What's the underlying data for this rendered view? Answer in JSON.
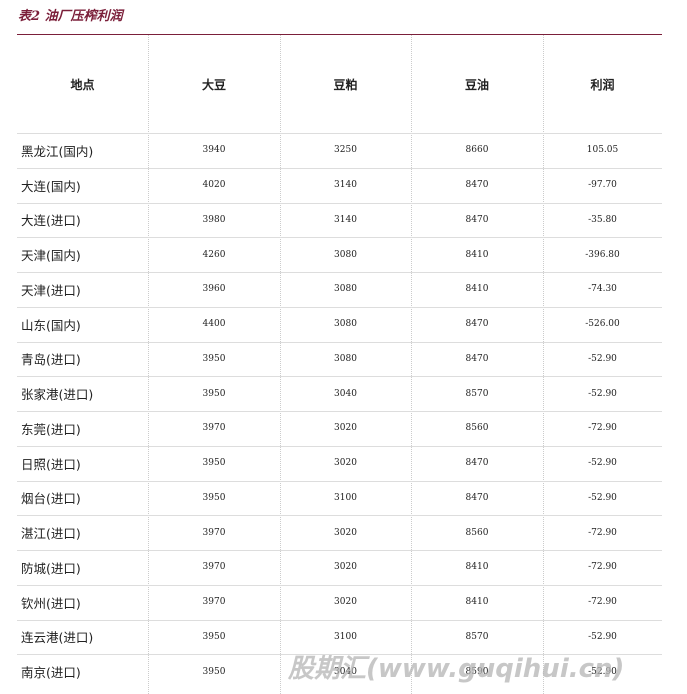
{
  "title": "表2 油厂压榨利润",
  "table": {
    "header": [
      "地点",
      "大豆",
      "豆粕",
      "豆油",
      "利润"
    ],
    "rows": [
      [
        "黑龙江(国内)",
        "3940",
        "3250",
        "8660",
        "105.05"
      ],
      [
        "大连(国内)",
        "4020",
        "3140",
        "8470",
        "-97.70"
      ],
      [
        "大连(进口)",
        "3980",
        "3140",
        "8470",
        "-35.80"
      ],
      [
        "天津(国内)",
        "4260",
        "3080",
        "8410",
        "-396.80"
      ],
      [
        "天津(进口)",
        "3960",
        "3080",
        "8410",
        "-74.30"
      ],
      [
        "山东(国内)",
        "4400",
        "3080",
        "8470",
        "-526.00"
      ],
      [
        "青岛(进口)",
        "3950",
        "3080",
        "8470",
        "-52.90"
      ],
      [
        "张家港(进口)",
        "3950",
        "3040",
        "8570",
        "-52.90"
      ],
      [
        "东莞(进口)",
        "3970",
        "3020",
        "8560",
        "-72.90"
      ],
      [
        "日照(进口)",
        "3950",
        "3020",
        "8470",
        "-52.90"
      ],
      [
        "烟台(进口)",
        "3950",
        "3100",
        "8470",
        "-52.90"
      ],
      [
        "湛江(进口)",
        "3970",
        "3020",
        "8560",
        "-72.90"
      ],
      [
        "防城(进口)",
        "3970",
        "3020",
        "8410",
        "-72.90"
      ],
      [
        "钦州(进口)",
        "3970",
        "3020",
        "8410",
        "-72.90"
      ],
      [
        "连云港(进口)",
        "3950",
        "3100",
        "8570",
        "-52.90"
      ],
      [
        "南京(进口)",
        "3950",
        "3040",
        "8590",
        "-52.90"
      ]
    ]
  },
  "watermark": "股期汇(www.guqihui.cn)"
}
